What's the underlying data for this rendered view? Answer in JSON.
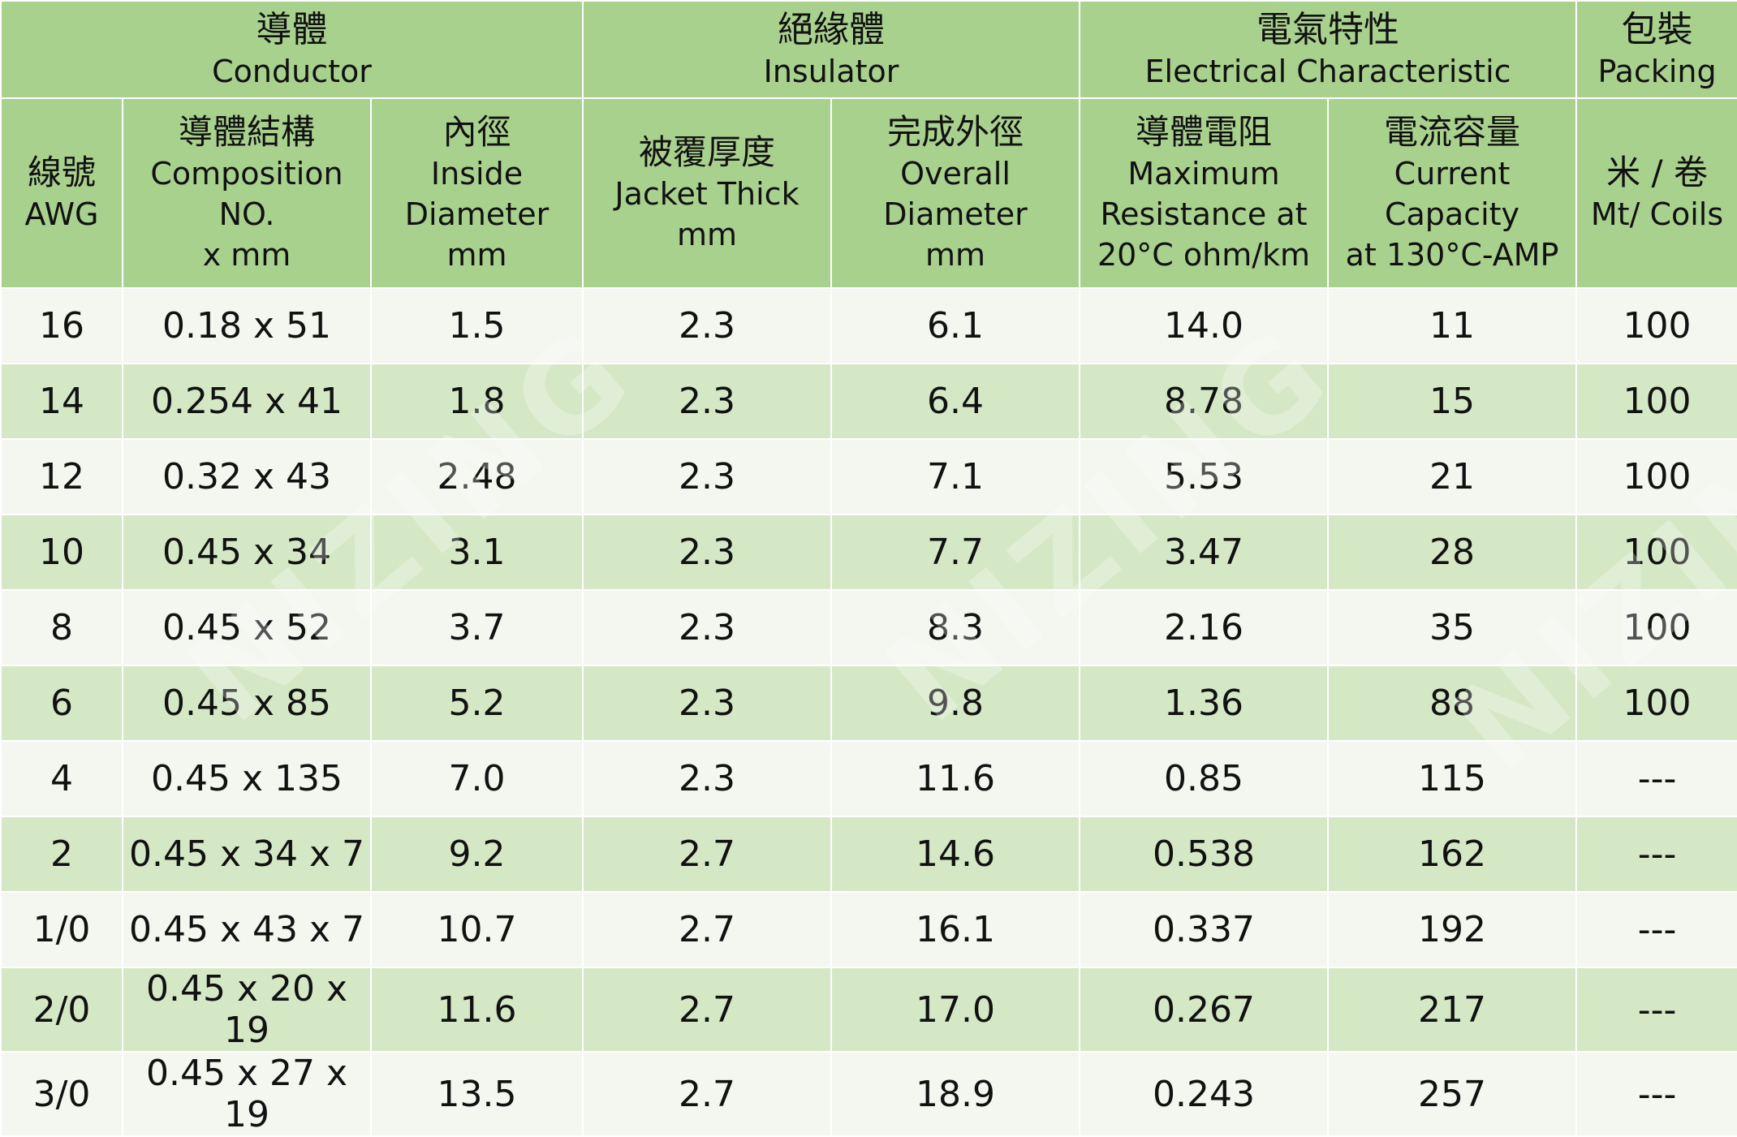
{
  "groups": [
    {
      "zh": "導體",
      "en": "Conductor"
    },
    {
      "zh": "絕緣體",
      "en": "Insulator"
    },
    {
      "zh": "電氣特性",
      "en": "Electrical Characteristic"
    },
    {
      "zh": "包裝",
      "en": "Packing"
    }
  ],
  "columns": [
    {
      "zh": "線號",
      "en": "AWG"
    },
    {
      "zh": "導體結構",
      "en1": "Composition NO.",
      "en2": "x mm"
    },
    {
      "zh": "內徑",
      "en1": "Inside",
      "en2": "Diameter mm"
    },
    {
      "zh": "被覆厚度",
      "en": "Jacket Thick mm"
    },
    {
      "zh": "完成外徑",
      "en1": "Overall Diameter",
      "en2": "mm"
    },
    {
      "zh": "導體電阻",
      "en1": "Maximum",
      "en2": "Resistance at",
      "en3": "20°C ohm/km"
    },
    {
      "zh": "電流容量",
      "en1": "Current Capacity",
      "en2": "at 130°C-AMP"
    },
    {
      "zh": "米 / 卷",
      "en": "Mt/ Coils"
    }
  ],
  "rows": [
    [
      "16",
      "0.18 x 51",
      "1.5",
      "2.3",
      "6.1",
      "14.0",
      "11",
      "100"
    ],
    [
      "14",
      "0.254 x 41",
      "1.8",
      "2.3",
      "6.4",
      "8.78",
      "15",
      "100"
    ],
    [
      "12",
      "0.32 x 43",
      "2.48",
      "2.3",
      "7.1",
      "5.53",
      "21",
      "100"
    ],
    [
      "10",
      "0.45 x 34",
      "3.1",
      "2.3",
      "7.7",
      "3.47",
      "28",
      "100"
    ],
    [
      "8",
      "0.45 x 52",
      "3.7",
      "2.3",
      "8.3",
      "2.16",
      "35",
      "100"
    ],
    [
      "6",
      "0.45 x 85",
      "5.2",
      "2.3",
      "9.8",
      "1.36",
      "88",
      "100"
    ],
    [
      "4",
      "0.45 x 135",
      "7.0",
      "2.3",
      "11.6",
      "0.85",
      "115",
      "---"
    ],
    [
      "2",
      "0.45 x 34 x 7",
      "9.2",
      "2.7",
      "14.6",
      "0.538",
      "162",
      "---"
    ],
    [
      "1/0",
      "0.45 x 43 x 7",
      "10.7",
      "2.7",
      "16.1",
      "0.337",
      "192",
      "---"
    ],
    [
      "2/0",
      "0.45 x 20 x 19",
      "11.6",
      "2.7",
      "17.0",
      "0.267",
      "217",
      "---"
    ],
    [
      "3/0",
      "0.45 x 27 x 19",
      "13.5",
      "2.7",
      "18.9",
      "0.243",
      "257",
      "---"
    ]
  ],
  "watermark": "NIZING"
}
